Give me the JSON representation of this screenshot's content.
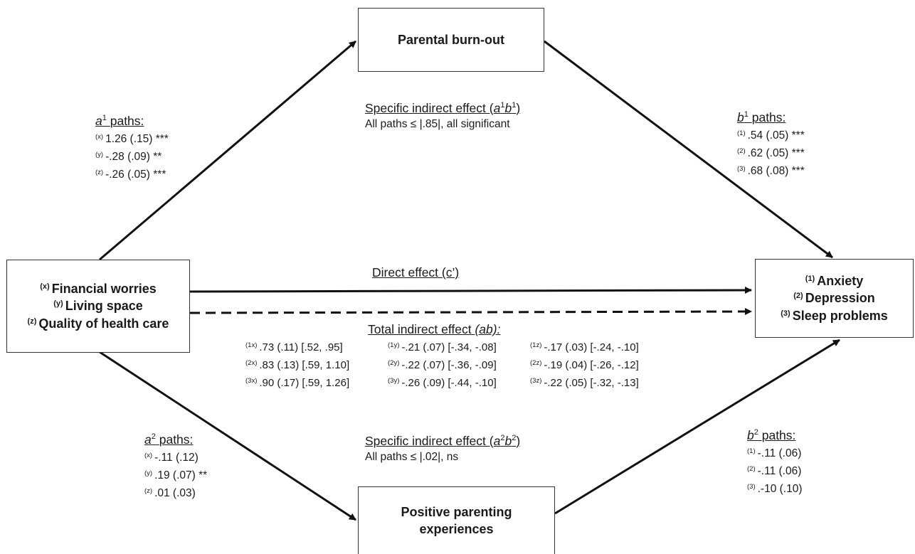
{
  "boxes": {
    "predictors": [
      {
        "tag": "(x)",
        "label": "Financial worries"
      },
      {
        "tag": "(y)",
        "label": "Living space"
      },
      {
        "tag": "(z)",
        "label": "Quality of health care"
      }
    ],
    "mediator1": "Parental burn-out",
    "mediator2_line1": "Positive parenting",
    "mediator2_line2": "experiences",
    "outcomes": [
      {
        "tag": "(1)",
        "label": "Anxiety"
      },
      {
        "tag": "(2)",
        "label": "Depression"
      },
      {
        "tag": "(3)",
        "label": "Sleep problems"
      }
    ]
  },
  "a1": {
    "var": "a",
    "sup": "1",
    "word": "paths:",
    "lines": [
      {
        "tag": "(x)",
        "text": "1.26 (.15) ***"
      },
      {
        "tag": "(y)",
        "text": "-.28 (.09) **"
      },
      {
        "tag": "(z)",
        "text": "-.26 (.05) ***"
      }
    ]
  },
  "b1": {
    "var": "b",
    "sup": "1",
    "word": "paths:",
    "lines": [
      {
        "tag": "(1)",
        "text": ".54 (.05) ***"
      },
      {
        "tag": "(2)",
        "text": ".62 (.05) ***"
      },
      {
        "tag": "(3)",
        "text": ".68 (.08) ***"
      }
    ]
  },
  "a2": {
    "var": "a",
    "sup": "2",
    "word": "paths:",
    "lines": [
      {
        "tag": "(x)",
        "text": "-.11 (.12)"
      },
      {
        "tag": "(y)",
        "text": ".19 (.07) **"
      },
      {
        "tag": "(z)",
        "text": ".01 (.03)"
      }
    ]
  },
  "b2": {
    "var": "b",
    "sup": "2",
    "word": "paths:",
    "lines": [
      {
        "tag": "(1)",
        "text": "-.11 (.06)"
      },
      {
        "tag": "(2)",
        "text": "-.11 (.06)"
      },
      {
        "tag": "(3)",
        "text": ".-10 (.10)"
      }
    ]
  },
  "specific1": {
    "prefix": "Specific indirect effect (",
    "v1": "a",
    "s1": "1",
    "v2": "b",
    "s2": "1",
    "suffix": ")",
    "line": "All paths ≤ |.85|, all significant"
  },
  "specific2": {
    "prefix": "Specific indirect effect (",
    "v1": "a",
    "s1": "2",
    "v2": "b",
    "s2": "2",
    "suffix": ")",
    "line": "All paths ≤ |.02|, ns"
  },
  "direct": "Direct effect (c’)",
  "total": {
    "title_prefix": "Total indirect effect ",
    "title_var": "(ab):",
    "cells": [
      {
        "tag": "(1x)",
        "text": ".73 (.11) [.52, .95]"
      },
      {
        "tag": "(1y)",
        "text": "-.21 (.07) [-.34, -.08]"
      },
      {
        "tag": "(1z)",
        "text": "-.17 (.03) [-.24, -.10]"
      },
      {
        "tag": "(2x)",
        "text": ".83 (.13) [.59, 1.10]"
      },
      {
        "tag": "(2y)",
        "text": "-.22 (.07) [-.36, -.09]"
      },
      {
        "tag": "(2z)",
        "text": "-.19 (.04) [-.26, -.12]"
      },
      {
        "tag": "(3x)",
        "text": ".90 (.17) [.59, 1.26]"
      },
      {
        "tag": "(3y)",
        "text": "-.26 (.09) [-.44, -.10]"
      },
      {
        "tag": "(3z)",
        "text": "-.22 (.05) [-.32, -.13]"
      }
    ]
  }
}
